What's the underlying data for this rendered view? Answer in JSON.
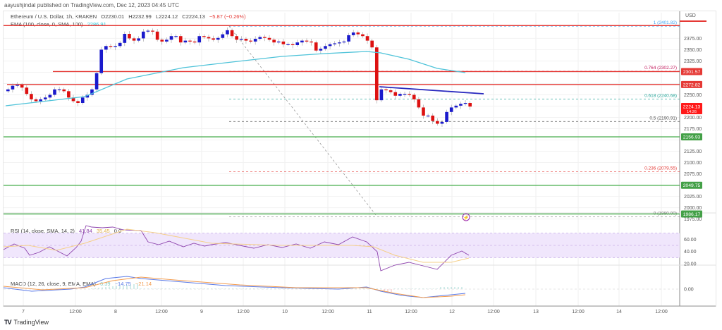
{
  "header": {
    "published": "aayushjindal published on TradingView.com, Dec 12, 2023 04:45 UTC",
    "symbol": "Ethereum / U.S. Dollar, 1h, KRAKEN",
    "open": "O2230.01",
    "high": "H2232.99",
    "low": "L2224.12",
    "close": "C2224.13",
    "change": "−5.87 (−0.26%)",
    "ema_label": "EMA (100, close, 0, SMA, 100)",
    "ema_value": "2286.91"
  },
  "rsi": {
    "label": "RSI (14, close, SMA, 14, 2)",
    "value": "41.84",
    "sma_value": "35.45",
    "extra": "0  0"
  },
  "macd": {
    "label": "MACD (12, 26, close, 9, EMA, EMA)",
    "hist": "6.39",
    "macd": "−14.75",
    "signal": "−21.14"
  },
  "price_axis": {
    "currency": "USD",
    "ticks": [
      "2375.00",
      "2350.00",
      "2325.00",
      "2250.00",
      "2200.00",
      "2175.00",
      "2125.00",
      "2100.00",
      "2075.00",
      "2025.00",
      "2000.00",
      "1975.00"
    ],
    "badges": [
      {
        "label": "2301.57",
        "color": "#e53935"
      },
      {
        "label": "2272.82",
        "color": "#e53935"
      },
      {
        "label": "2224.13",
        "sub": "14:26",
        "color": "#ff1a1a"
      },
      {
        "label": "2156.93",
        "color": "#43a047"
      },
      {
        "label": "2049.75",
        "color": "#43a047"
      },
      {
        "label": "1986.17",
        "color": "#43a047"
      }
    ]
  },
  "rsi_axis": {
    "ticks": [
      "60.00",
      "40.00",
      "20.00"
    ]
  },
  "macd_axis": {
    "ticks": [
      "0.00"
    ]
  },
  "time_axis": {
    "ticks": [
      "7",
      "12:00",
      "8",
      "12:00",
      "9",
      "12:00",
      "10",
      "12:00",
      "11",
      "12:00",
      "12",
      "12:00",
      "13",
      "12:00",
      "14",
      "12:00"
    ]
  },
  "fib_labels": [
    {
      "label": "1 (2401.82)",
      "color": "#42a5f5"
    },
    {
      "label": "0.764 (2302.27)",
      "color": "#c2185b"
    },
    {
      "label": "0.618 (2240.68)",
      "color": "#26a69a"
    },
    {
      "label": "0.5 (2190.91)",
      "color": "#555555"
    },
    {
      "label": "0.236 (2079.55)",
      "color": "#e53935"
    },
    {
      "label": "0 (1980.00)",
      "color": "#777777"
    }
  ],
  "footer": {
    "brand": "TradingView",
    "logo": "TV"
  },
  "colors": {
    "bull": "#1a1acc",
    "bear": "#dd1111",
    "ema": "#4fc3d9",
    "resistance": "#e53935",
    "support": "#4caf50",
    "trend": "#2a2abf",
    "rsi": "#8e44ad",
    "rsi_sma": "#f5d08a",
    "rsi_band": "#f0e6fc",
    "macd": "#5b7be8",
    "signal": "#f39c4f"
  },
  "chart_data": {
    "type": "candlestick",
    "title": "Ethereum / U.S. Dollar, 1h, KRAKEN",
    "xlabel": "",
    "ylabel": "USD",
    "ylim": [
      1965,
      2410
    ],
    "x_ticks": [
      "7",
      "12:00",
      "8",
      "12:00",
      "9",
      "12:00",
      "10",
      "12:00",
      "11",
      "12:00",
      "12",
      "12:00",
      "13",
      "12:00",
      "14",
      "12:00"
    ],
    "last": {
      "open": 2230.01,
      "high": 2232.99,
      "low": 2224.12,
      "close": 2224.13,
      "change": -5.87,
      "change_pct": -0.26
    },
    "horizontal_levels": {
      "resistance": [
        2401.82,
        2301.57,
        2272.82
      ],
      "support": [
        2156.93,
        2049.75,
        1986.17
      ]
    },
    "fibonacci": [
      {
        "level": 1,
        "price": 2401.82
      },
      {
        "level": 0.764,
        "price": 2302.27
      },
      {
        "level": 0.618,
        "price": 2240.68
      },
      {
        "level": 0.5,
        "price": 2190.91
      },
      {
        "level": 0.236,
        "price": 2079.55
      },
      {
        "level": 0,
        "price": 1980.0
      }
    ],
    "ema100": {
      "period": 100,
      "last": 2286.91
    },
    "close_series_approx": [
      2262,
      2270,
      2272,
      2266,
      2252,
      2240,
      2236,
      2240,
      2244,
      2250,
      2262,
      2262,
      2258,
      2244,
      2236,
      2232,
      2244,
      2250,
      2262,
      2298,
      2350,
      2358,
      2356,
      2358,
      2365,
      2385,
      2375,
      2370,
      2375,
      2390,
      2392,
      2390,
      2372,
      2368,
      2372,
      2380,
      2380,
      2366,
      2370,
      2368,
      2366,
      2380,
      2378,
      2375,
      2372,
      2376,
      2384,
      2393,
      2380,
      2372,
      2374,
      2370,
      2368,
      2374,
      2378,
      2376,
      2372,
      2366,
      2368,
      2362,
      2362,
      2360,
      2366,
      2370,
      2368,
      2366,
      2348,
      2352,
      2358,
      2362,
      2364,
      2366,
      2368,
      2382,
      2388,
      2384,
      2380,
      2370,
      2355,
      2238,
      2262,
      2260,
      2256,
      2248,
      2252,
      2252,
      2250,
      2240,
      2222,
      2204,
      2204,
      2192,
      2186,
      2190,
      2212,
      2222,
      2226,
      2230,
      2232,
      2224
    ],
    "rsi": {
      "period": 14,
      "last": 41.84,
      "sma": 35.45,
      "band": [
        30,
        70
      ]
    },
    "macd": {
      "fast": 12,
      "slow": 26,
      "signal": 9,
      "histogram": 6.39,
      "macd": -14.75,
      "signal_value": -21.14
    }
  }
}
